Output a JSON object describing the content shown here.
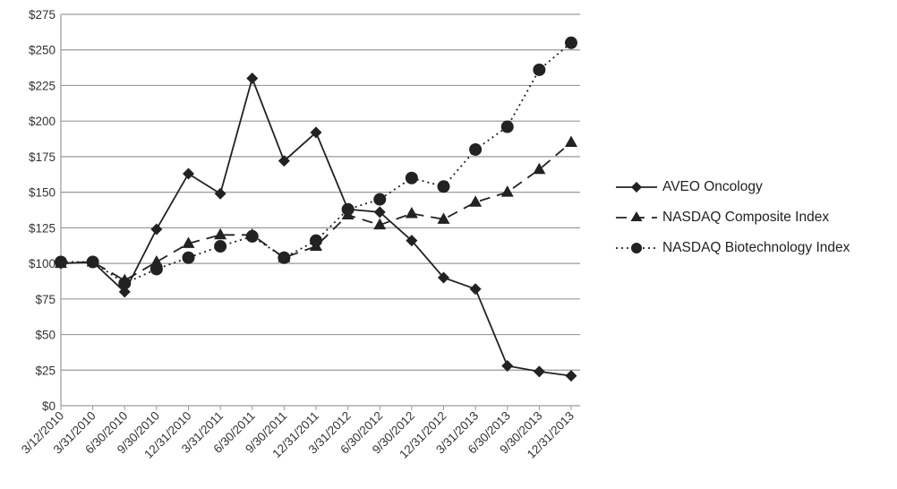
{
  "chart_data": {
    "type": "line",
    "title": "",
    "xlabel": "",
    "ylabel": "",
    "ylim": [
      0,
      275
    ],
    "y_ticks": [
      0,
      25,
      50,
      75,
      100,
      125,
      150,
      175,
      200,
      225,
      250,
      275
    ],
    "y_tick_labels": [
      "$0",
      "$25",
      "$50",
      "$75",
      "$100",
      "$125",
      "$150",
      "$175",
      "$200",
      "$225",
      "$250",
      "$275"
    ],
    "x_tick_labels": [
      "3/12/2010",
      "3/31/2010",
      "6/30/2010",
      "9/30/2010",
      "12/31/2010",
      "3/31/2011",
      "6/30/2011",
      "9/30/2011",
      "12/31/2011",
      "3/31/2012",
      "6/30/2012",
      "9/30/2012",
      "12/31/2012",
      "3/31/2013",
      "6/30/2013",
      "9/30/2013",
      "12/31/2013"
    ],
    "grid": "horizontal",
    "legend_position": "right",
    "series": [
      {
        "name": "AVEO Oncology",
        "marker": "diamond",
        "style": "solid",
        "values": [
          100,
          101,
          80,
          124,
          163,
          149,
          230,
          172,
          192,
          138,
          136,
          116,
          90,
          82,
          28,
          24,
          21
        ]
      },
      {
        "name": "NASDAQ Composite Index",
        "marker": "triangle",
        "style": "dashed",
        "values": [
          100,
          101,
          88,
          101,
          114,
          120,
          120,
          104,
          112,
          134,
          127,
          135,
          131,
          143,
          150,
          166,
          185
        ]
      },
      {
        "name": "NASDAQ Biotechnology Index",
        "marker": "circle",
        "style": "dotted",
        "values": [
          101,
          101,
          86,
          96,
          104,
          112,
          119,
          104,
          116,
          138,
          145,
          160,
          154,
          180,
          196,
          236,
          255
        ]
      }
    ]
  }
}
